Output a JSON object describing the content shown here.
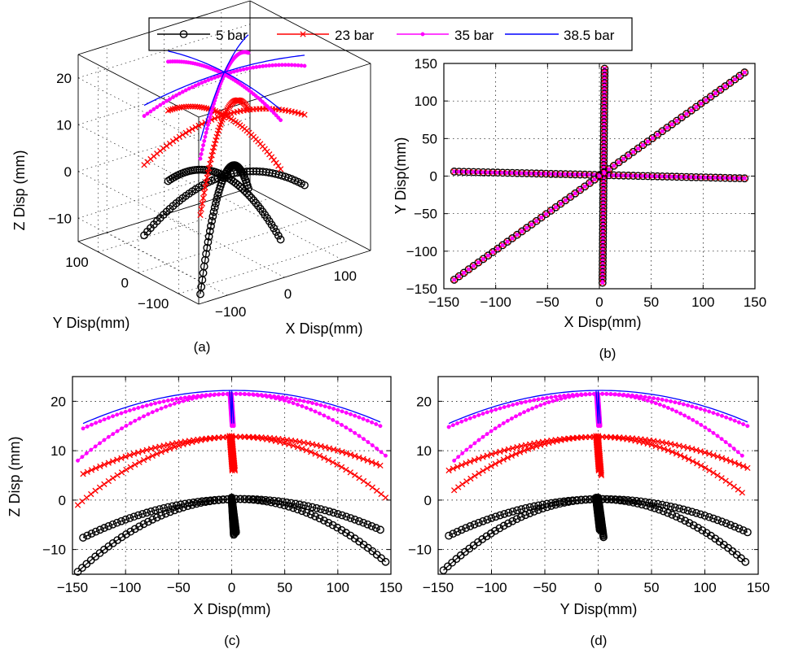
{
  "legend": {
    "entries": [
      {
        "label": "5 bar",
        "color": "#000000",
        "marker": "circle"
      },
      {
        "label": "23 bar",
        "color": "#ff0000",
        "marker": "x"
      },
      {
        "label": "35 bar",
        "color": "#ff00ff",
        "marker": "dot"
      },
      {
        "label": "38.5 bar",
        "color": "#0000ff",
        "marker": "none"
      }
    ]
  },
  "chart_data": [
    {
      "panel": "(a)",
      "type": "scatter3d",
      "xlabel": "X Disp(mm)",
      "ylabel": "Y Disp(mm)",
      "zlabel": "Z Disp (mm)",
      "xticks": [
        -100,
        0,
        100
      ],
      "yticks": [
        -100,
        0,
        100
      ],
      "zticks": [
        -10,
        0,
        10,
        20
      ],
      "xlim": [
        -150,
        150
      ],
      "ylim": [
        -150,
        150
      ],
      "zlim": [
        -15,
        25
      ],
      "grid": true,
      "series": [
        {
          "label": "5 bar",
          "center_z": 0,
          "curvature": 2.5e-05
        },
        {
          "label": "23 bar",
          "center_z": 13,
          "curvature": 1.8e-05
        },
        {
          "label": "35 bar",
          "center_z": 21.7,
          "curvature": 1.2e-05
        },
        {
          "label": "38.5 bar",
          "center_z": 22.2,
          "curvature": 6e-06
        }
      ],
      "sweeps": [
        "x-axis",
        "y-axis",
        "diagonal"
      ]
    },
    {
      "panel": "(b)",
      "type": "scatter",
      "xlabel": "X Disp(mm)",
      "ylabel": "Y Disp(mm)",
      "xticks": [
        -150,
        -100,
        -50,
        0,
        50,
        100,
        150
      ],
      "yticks": [
        -150,
        -100,
        -50,
        0,
        50,
        100,
        150
      ],
      "xlim": [
        -150,
        150
      ],
      "ylim": [
        -150,
        150
      ],
      "grid": true,
      "lines": [
        {
          "name": "horizontal sweep",
          "x": [
            -140,
            140
          ],
          "y": [
            6,
            -3
          ]
        },
        {
          "name": "vertical sweep",
          "x": [
            5,
            3
          ],
          "y": [
            143,
            -142
          ]
        },
        {
          "name": "diagonal sweep",
          "x": [
            -140,
            140
          ],
          "y": [
            -138,
            138
          ]
        }
      ]
    },
    {
      "panel": "(c)",
      "type": "scatter",
      "xlabel": "X Disp(mm)",
      "ylabel": "Z Disp (mm)",
      "xticks": [
        -150,
        -100,
        -50,
        0,
        50,
        100,
        150
      ],
      "yticks": [
        -10,
        0,
        10,
        20
      ],
      "xlim": [
        -150,
        150
      ],
      "ylim": [
        -15,
        25
      ],
      "grid": true,
      "series": [
        {
          "label": "5 bar",
          "curves": [
            {
              "x": [
                -140,
                0,
                140
              ],
              "z": [
                -7.6,
                0.2,
                -6.0
              ]
            },
            {
              "x": [
                -145,
                0,
                145
              ],
              "z": [
                -14.5,
                0.2,
                -12.5
              ]
            },
            {
              "x": [
                0,
                0,
                4
              ],
              "z": [
                0.5,
                -7.0,
                -6.5
              ]
            }
          ]
        },
        {
          "label": "23 bar",
          "curves": [
            {
              "x": [
                -140,
                0,
                140
              ],
              "z": [
                5.3,
                12.8,
                7.0
              ]
            },
            {
              "x": [
                -145,
                0,
                145
              ],
              "z": [
                -1.0,
                12.8,
                0.5
              ]
            },
            {
              "x": [
                -2,
                0,
                3
              ],
              "z": [
                13.0,
                6.0,
                6.0
              ]
            }
          ]
        },
        {
          "label": "35 bar",
          "curves": [
            {
              "x": [
                -140,
                0,
                140
              ],
              "z": [
                14.5,
                21.5,
                15.0
              ]
            },
            {
              "x": [
                -145,
                0,
                145
              ],
              "z": [
                8.0,
                21.5,
                9.0
              ]
            },
            {
              "x": [
                -2,
                0,
                2
              ],
              "z": [
                21.5,
                15.0,
                15.0
              ]
            }
          ]
        },
        {
          "label": "38.5 bar",
          "curves": [
            {
              "x": [
                -140,
                0,
                140
              ],
              "z": [
                15.5,
                22.2,
                15.8
              ]
            },
            {
              "x": [
                -2,
                0,
                2
              ],
              "z": [
                22.2,
                15.5,
                15.5
              ]
            }
          ]
        }
      ]
    },
    {
      "panel": "(d)",
      "type": "scatter",
      "xlabel": "Y Disp(mm)",
      "ylabel": "",
      "xticks": [
        -150,
        -100,
        -50,
        0,
        50,
        100,
        150
      ],
      "yticks": [
        -10,
        0,
        10,
        20
      ],
      "xlim": [
        -150,
        150
      ],
      "ylim": [
        -15,
        25
      ],
      "grid": true,
      "series": [
        {
          "label": "5 bar",
          "curves": [
            {
              "x": [
                -140,
                0,
                140
              ],
              "z": [
                -7.2,
                0.2,
                -6.5
              ]
            },
            {
              "x": [
                -145,
                0,
                138
              ],
              "z": [
                -14.2,
                0.2,
                -12.5
              ]
            },
            {
              "x": [
                -2,
                0,
                5
              ],
              "z": [
                0.5,
                -6.0,
                -7.5
              ]
            }
          ]
        },
        {
          "label": "23 bar",
          "curves": [
            {
              "x": [
                -140,
                0,
                140
              ],
              "z": [
                6.0,
                12.8,
                6.5
              ]
            },
            {
              "x": [
                -135,
                0,
                135
              ],
              "z": [
                2.0,
                12.8,
                1.5
              ]
            },
            {
              "x": [
                -2,
                0,
                3
              ],
              "z": [
                13.0,
                6.0,
                5.0
              ]
            }
          ]
        },
        {
          "label": "35 bar",
          "curves": [
            {
              "x": [
                -140,
                0,
                140
              ],
              "z": [
                14.8,
                21.5,
                15.0
              ]
            },
            {
              "x": [
                -135,
                0,
                135
              ],
              "z": [
                8.0,
                21.5,
                9.0
              ]
            },
            {
              "x": [
                -2,
                0,
                2
              ],
              "z": [
                21.5,
                15.0,
                15.0
              ]
            }
          ]
        },
        {
          "label": "38.5 bar",
          "curves": [
            {
              "x": [
                -140,
                0,
                140
              ],
              "z": [
                15.5,
                22.2,
                15.8
              ]
            },
            {
              "x": [
                -2,
                0,
                2
              ],
              "z": [
                22.2,
                15.5,
                15.5
              ]
            }
          ]
        }
      ]
    }
  ]
}
